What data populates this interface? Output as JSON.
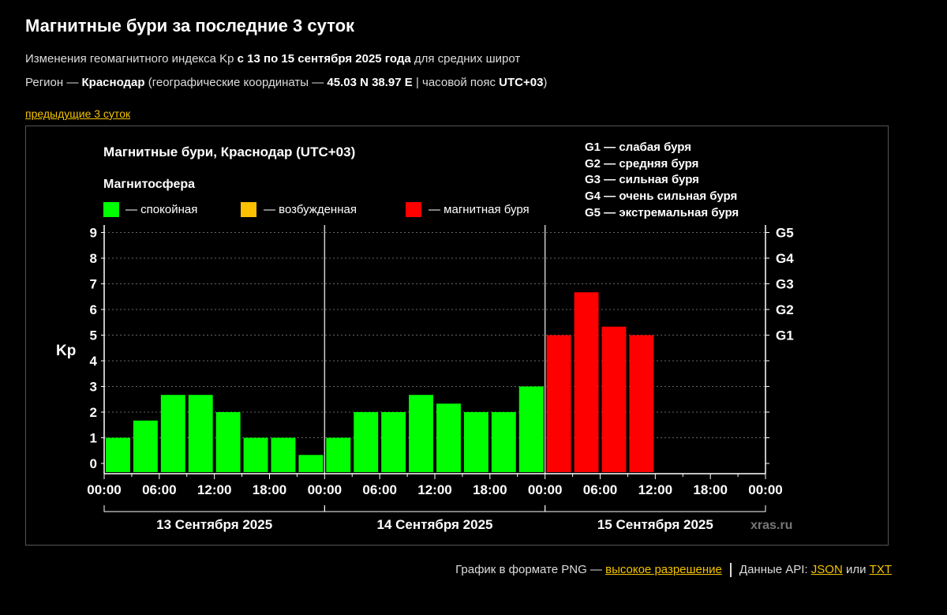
{
  "header": {
    "title": "Магнитные бури за последние 3 суток",
    "line1_pre": "Изменения геомагнитного индекса Kp ",
    "line1_bold": "с 13 по 15 сентября 2025 года",
    "line1_post": " для средних широт",
    "line2_pre": "Регион — ",
    "line2_city": "Краснодар",
    "line2_mid": " (географические координаты — ",
    "line2_coords": "45.03 N 38.97 E",
    "line2_mid2": " | часовой пояс ",
    "line2_tz": "UTC+03",
    "line2_post": ")",
    "prev_link": "предыдущие 3 суток"
  },
  "chart_data": {
    "type": "bar",
    "title": "Магнитные бури, Краснодар (UTC+03)",
    "ylabel": "Kp",
    "ylim": [
      0,
      9
    ],
    "yticks": [
      "0",
      "1",
      "2",
      "3",
      "4",
      "5",
      "6",
      "7",
      "8",
      "9"
    ],
    "g_ticks": [
      {
        "value": 5,
        "label": "G1"
      },
      {
        "value": 6,
        "label": "G2"
      },
      {
        "value": 7,
        "label": "G3"
      },
      {
        "value": 8,
        "label": "G4"
      },
      {
        "value": 9,
        "label": "G5"
      }
    ],
    "x_time_labels": [
      "00:00",
      "06:00",
      "12:00",
      "18:00",
      "00:00",
      "06:00",
      "12:00",
      "18:00",
      "00:00",
      "06:00",
      "12:00",
      "18:00",
      "00:00"
    ],
    "days": [
      "13 Сентября 2025",
      "14 Сентября 2025",
      "15 Сентября 2025"
    ],
    "legend_title": "Магнитосфера",
    "legend": [
      {
        "label": "— спокойная",
        "color": "#00ff00"
      },
      {
        "label": "— возбужденная",
        "color": "#ffc000"
      },
      {
        "label": "— магнитная буря",
        "color": "#ff0000"
      }
    ],
    "g_legend": [
      "G1 — слабая буря",
      "G2 — средняя буря",
      "G3 — сильная буря",
      "G4 — очень сильная буря",
      "G5 — экстремальная буря"
    ],
    "values": [
      1,
      1.67,
      2.67,
      2.67,
      2,
      1,
      1,
      0.33,
      1,
      2,
      2,
      2.67,
      2.33,
      2,
      2,
      3,
      5,
      6.67,
      5.33,
      5
    ],
    "watermark": "xras.ru"
  },
  "footer": {
    "png_text": "График в формате PNG — ",
    "png_link": "высокое разрешение",
    "api_text": "Данные API: ",
    "json_link": "JSON",
    "or_text": " или ",
    "txt_link": "TXT"
  }
}
